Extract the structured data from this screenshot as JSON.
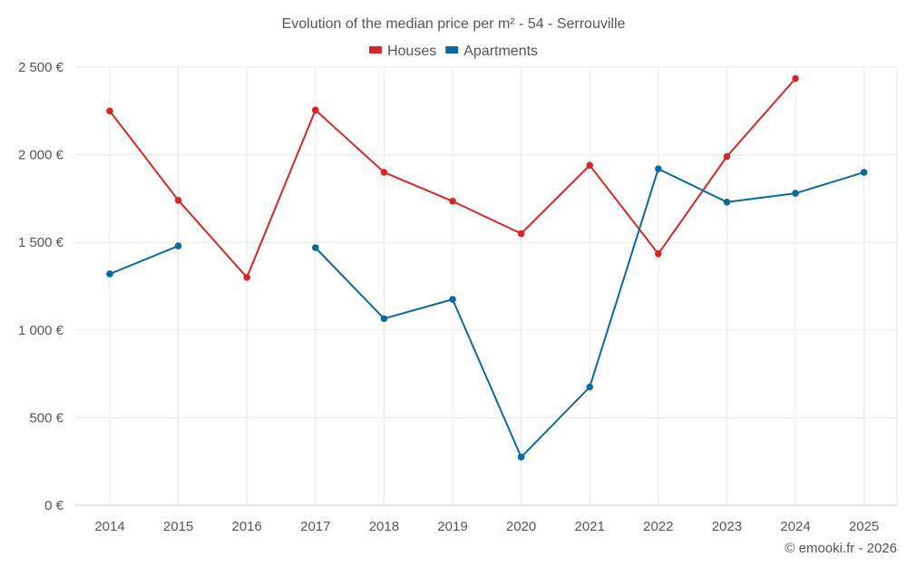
{
  "chart_data": {
    "type": "line",
    "title": "Evolution of the median price per m² - 54 - Serrouville",
    "xlabel": "",
    "ylabel": "",
    "categories": [
      "2014",
      "2015",
      "2016",
      "2017",
      "2018",
      "2019",
      "2020",
      "2021",
      "2022",
      "2023",
      "2024",
      "2025"
    ],
    "ylim": [
      0,
      2500
    ],
    "yticks": [
      0,
      500,
      1000,
      1500,
      2000,
      2500
    ],
    "ytick_labels": [
      "0 €",
      "500 €",
      "1 000 €",
      "1 500 €",
      "2 000 €",
      "2 500 €"
    ],
    "grid": true,
    "legend_position": "top-center",
    "series": [
      {
        "name": "Houses",
        "color": "#d62728",
        "values": [
          2250,
          1740,
          1300,
          2255,
          1900,
          1735,
          1550,
          1940,
          1435,
          1990,
          2435,
          null
        ]
      },
      {
        "name": "Apartments",
        "color": "#0b6a9b",
        "values": [
          1320,
          1480,
          null,
          1470,
          1065,
          1175,
          275,
          675,
          1920,
          1730,
          1780,
          1900
        ]
      }
    ]
  },
  "credit": "© emooki.fr - 2026"
}
